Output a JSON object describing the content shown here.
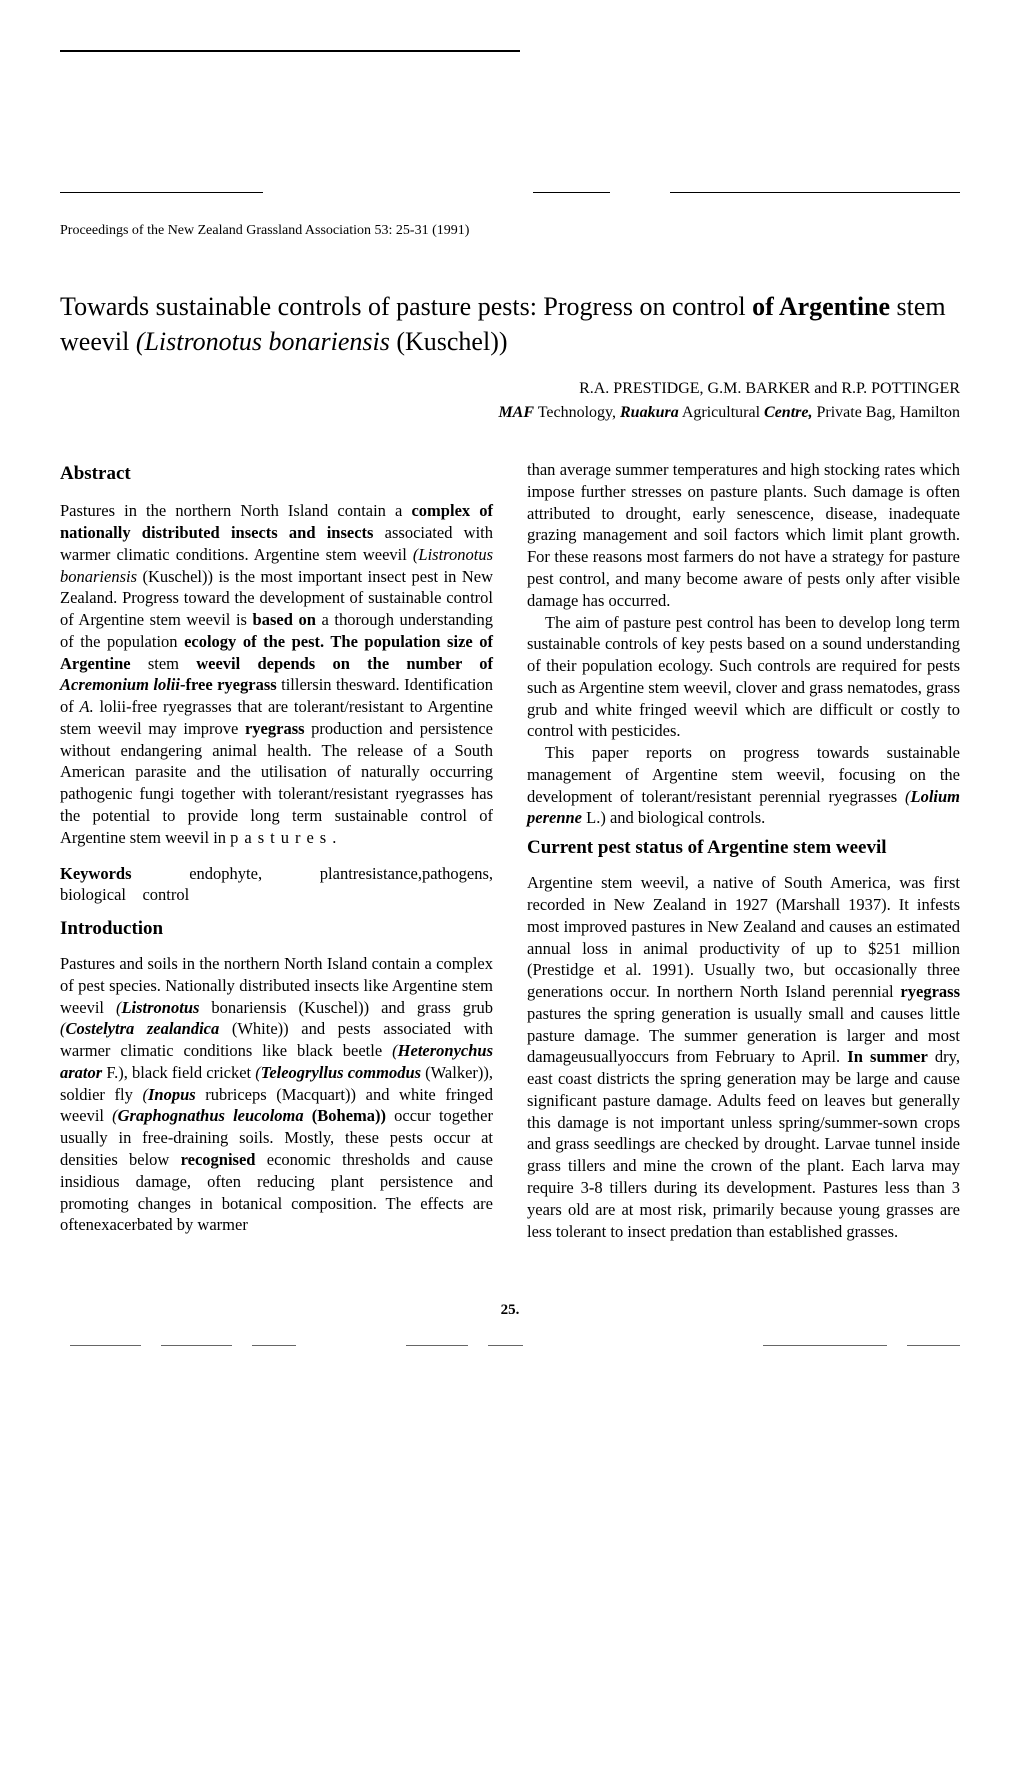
{
  "proceedings": "Proceedings of the New Zealand Grassland Association 53: 25-31 (1991)",
  "title_html": "Towards sustainable controls of pasture pests: Progress on control <b>of Argentine</b> stem weevil <em>(Listronotus bonariensis</em> (Kuschel))",
  "authors": "R.A. PRESTIDGE, G.M. BARKER and R.P. POTTINGER",
  "affiliation_html": "<em><b>MAF</b></em> Technology, <em><b>Ruakura</b></em> Agricultural <em><b>Centre,</b></em> Private Bag, Hamilton",
  "left": {
    "abstract_heading": "Abstract",
    "abstract_html": "Pastures in the northern North Island contain a <b>complex of nationally distributed insects and insects</b> associated with warmer climatic conditions. Argentine stem weevil <em>(Listronotus bonariensis</em> (Kuschel)) is the most important insect pest in New Zealand. Progress toward the development of sustainable control of Argentine stem weevil is <b>based on</b> a thorough understanding of the population <b>ecology of the pest. The population size of Argentine</b> stem <b>weevil depends on the number of <em>Acremonium</em></b> <em><b>lolii</b></em><b>-free ryegrass</b> tillersin thesward. Identification of <em>A.</em> lolii-free ryegrasses that are tolerant/resistant to Argentine stem weevil may improve <b>ryegrass</b> production and persistence without endangering animal health. The release of a South American parasite and the utilisation of naturally occurring pathogenic fungi together with tolerant/resistant ryegrasses has the potential to provide long term sustainable control of Argentine stem weevil in <span class=\"letterspaced\">pastures.</span>",
    "keywords_html": "<b>Keywords</b>&nbsp;&nbsp;endophyte,&nbsp;&nbsp;plantresistance,pathogens, biological&nbsp;&nbsp;&nbsp;&nbsp;control",
    "intro_heading": "Introduction",
    "intro_html": "Pastures and soils in the northern North Island contain a complex of pest species. Nationally distributed insects like Argentine stem weevil <em>(<b>Listronotus</b></em> bonariensis (Kuschel)) and grass grub <em>(<b>Costelytra zealandica</b></em> (White)) and pests associated with warmer climatic conditions like black beetle <em>(<b>Heteronychus arator</b></em> F.), black field cricket <em>(<b>Teleogryllus commodus</b></em> (Walker)), soldier fly <em>(<b>Inopus</b></em> rubriceps (Macquart)) and white fringed weevil <em>(<b>Graphognathus leucoloma</b></em> <b>(Bohema))</b> occur together usually in free-draining soils. Mostly, these pests occur at densities below <b>recognised</b> economic thresholds and cause insidious damage, often reducing plant persistence and promoting changes in botanical composition. The effects are oftenexacerbated by warmer"
  },
  "right": {
    "p1": "than average summer temperatures and high stocking rates which impose further stresses on pasture plants. Such damage is often attributed to drought, early senescence, disease, inadequate grazing management and soil factors which limit plant growth. For these reasons most farmers do not have a strategy for pasture pest control, and many become aware of pests only after visible damage has occurred.",
    "p2": "The aim of pasture pest control has been to develop long term sustainable controls of key pests based on a sound understanding of their population ecology. Such controls are required for pests such as Argentine stem weevil, clover and grass nematodes, grass grub and white fringed weevil which are difficult or costly to control with pesticides.",
    "p3_html": "This paper reports on progress towards sustainable management of Argentine stem weevil, focusing on the development of tolerant/resistant perennial ryegrasses <em>(<b>Lolium perenne</b></em> L.) and biological controls.",
    "status_heading_html": "Current pest status <b>of Argentine</b> stem weevil",
    "p4_html": "Argentine stem weevil, a native of South America, was first recorded in New Zealand in 1927 (Marshall 1937). It infests most improved pastures in New Zealand and causes an estimated annual loss in animal productivity of up to $251 million (Prestidge et al. 1991). Usually two, but occasionally three generations occur. In northern North Island perennial <b>ryegrass</b> pastures the spring generation is usually small and causes little pasture damage. The summer generation is larger and most damageusuallyoccurs from February to April. <b>In summer</b> dry, east coast districts the spring generation may be large and cause significant pasture damage. Adults feed on leaves but generally this damage is not important unless spring/summer-sown crops and grass seedlings are checked by drought. Larvae tunnel inside grass tillers and mine the crown of the plant. Each larva may require 3-8 tillers during its development. Pastures less than 3 years old are at most risk, primarily because young grasses are less tolerant to insect predation than established grasses."
  },
  "page_number": "25."
}
